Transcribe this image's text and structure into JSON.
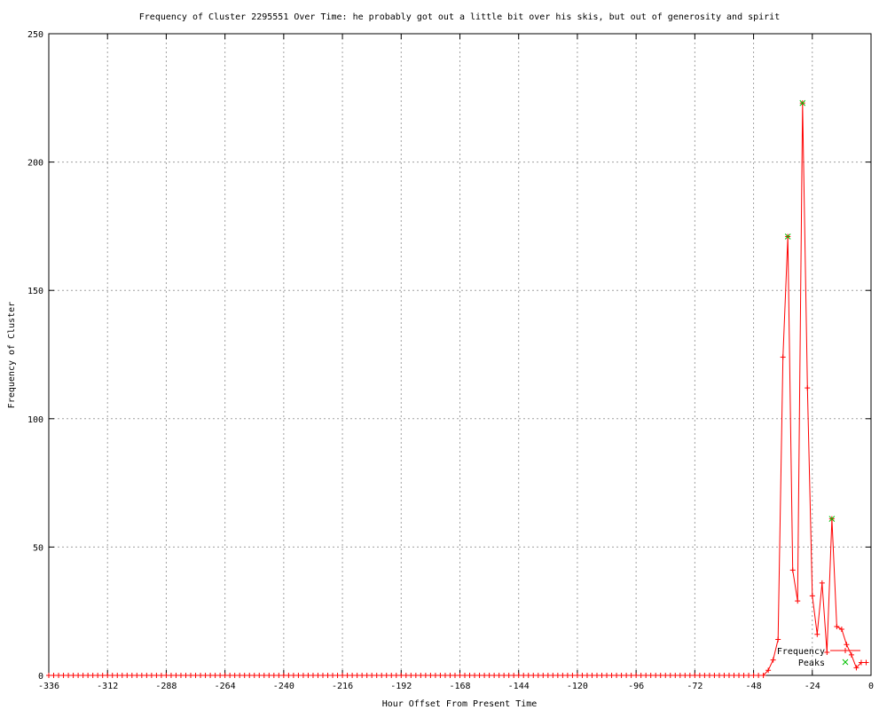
{
  "chart_data": {
    "type": "line",
    "title": "Frequency of Cluster 2295551 Over Time: he probably got out a little bit over his skis, but out of generosity and spirit",
    "xlabel": "Hour Offset From Present Time",
    "ylabel": "Frequency of Cluster",
    "xlim": [
      -336,
      0
    ],
    "ylim": [
      0,
      250
    ],
    "xticks": [
      -336,
      -312,
      -288,
      -264,
      -240,
      -216,
      -192,
      -168,
      -144,
      -120,
      -96,
      -72,
      -48,
      -24,
      0
    ],
    "yticks": [
      0,
      50,
      100,
      150,
      200,
      250
    ],
    "grid": true,
    "legend_position": "bottom-right",
    "series": [
      {
        "name": "Frequency",
        "color": "#ff0000",
        "marker": "+",
        "x": [
          -336,
          -334,
          -332,
          -330,
          -328,
          -326,
          -324,
          -322,
          -320,
          -318,
          -316,
          -314,
          -312,
          -310,
          -308,
          -306,
          -304,
          -302,
          -300,
          -298,
          -296,
          -294,
          -292,
          -290,
          -288,
          -286,
          -284,
          -282,
          -280,
          -278,
          -276,
          -274,
          -272,
          -270,
          -268,
          -266,
          -264,
          -262,
          -260,
          -258,
          -256,
          -254,
          -252,
          -250,
          -248,
          -246,
          -244,
          -242,
          -240,
          -238,
          -236,
          -234,
          -232,
          -230,
          -228,
          -226,
          -224,
          -222,
          -220,
          -218,
          -216,
          -214,
          -212,
          -210,
          -208,
          -206,
          -204,
          -202,
          -200,
          -198,
          -196,
          -194,
          -192,
          -190,
          -188,
          -186,
          -184,
          -182,
          -180,
          -178,
          -176,
          -174,
          -172,
          -170,
          -168,
          -166,
          -164,
          -162,
          -160,
          -158,
          -156,
          -154,
          -152,
          -150,
          -148,
          -146,
          -144,
          -142,
          -140,
          -138,
          -136,
          -134,
          -132,
          -130,
          -128,
          -126,
          -124,
          -122,
          -120,
          -118,
          -116,
          -114,
          -112,
          -110,
          -108,
          -106,
          -104,
          -102,
          -100,
          -98,
          -96,
          -94,
          -92,
          -90,
          -88,
          -86,
          -84,
          -82,
          -80,
          -78,
          -76,
          -74,
          -72,
          -70,
          -68,
          -66,
          -64,
          -62,
          -60,
          -58,
          -56,
          -54,
          -52,
          -50,
          -48,
          -46,
          -44,
          -42,
          -40,
          -38,
          -36,
          -34,
          -32,
          -30,
          -28,
          -26,
          -24,
          -22,
          -20,
          -18,
          -16,
          -14,
          -12,
          -10,
          -8,
          -6,
          -4,
          -2
        ],
        "y": [
          0,
          0,
          0,
          0,
          0,
          0,
          0,
          0,
          0,
          0,
          0,
          0,
          0,
          0,
          0,
          0,
          0,
          0,
          0,
          0,
          0,
          0,
          0,
          0,
          0,
          0,
          0,
          0,
          0,
          0,
          0,
          0,
          0,
          0,
          0,
          0,
          0,
          0,
          0,
          0,
          0,
          0,
          0,
          0,
          0,
          0,
          0,
          0,
          0,
          0,
          0,
          0,
          0,
          0,
          0,
          0,
          0,
          0,
          0,
          0,
          0,
          0,
          0,
          0,
          0,
          0,
          0,
          0,
          0,
          0,
          0,
          0,
          0,
          0,
          0,
          0,
          0,
          0,
          0,
          0,
          0,
          0,
          0,
          0,
          0,
          0,
          0,
          0,
          0,
          0,
          0,
          0,
          0,
          0,
          0,
          0,
          0,
          0,
          0,
          0,
          0,
          0,
          0,
          0,
          0,
          0,
          0,
          0,
          0,
          0,
          0,
          0,
          0,
          0,
          0,
          0,
          0,
          0,
          0,
          0,
          0,
          0,
          0,
          0,
          0,
          0,
          0,
          0,
          0,
          0,
          0,
          0,
          0,
          0,
          0,
          0,
          0,
          0,
          0,
          0,
          0,
          0,
          0,
          0,
          0,
          0,
          0,
          2,
          6,
          14,
          124,
          171,
          41,
          29,
          223,
          112,
          31,
          16,
          36,
          9,
          61,
          19,
          18,
          12,
          8,
          3,
          5,
          5
        ]
      },
      {
        "name": "Peaks",
        "color": "#00c000",
        "marker": "x",
        "x": [
          -34,
          -28,
          -16
        ],
        "y": [
          171,
          223,
          61
        ]
      }
    ]
  }
}
